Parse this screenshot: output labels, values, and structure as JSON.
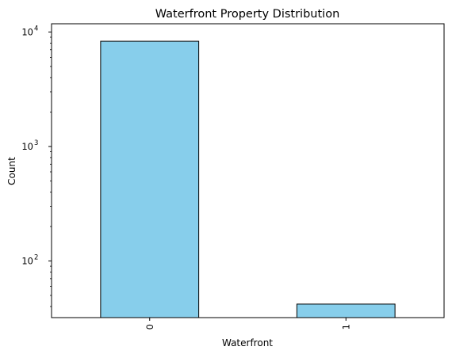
{
  "chart_data": {
    "type": "bar",
    "title": "Waterfront Property Distribution",
    "xlabel": "Waterfront",
    "ylabel": "Count",
    "categories": [
      "0",
      "1"
    ],
    "values": [
      8300,
      42
    ],
    "yscale": "log",
    "ylim": [
      32,
      11800
    ],
    "yticks": [
      {
        "value": 100,
        "base": "10",
        "exp": "2"
      },
      {
        "value": 1000,
        "base": "10",
        "exp": "3"
      },
      {
        "value": 10000,
        "base": "10",
        "exp": "4"
      }
    ],
    "grid": false,
    "legend": "none",
    "bar_color": "#87CEEB",
    "bar_edge_color": "#000000",
    "xtick_rotation": 90
  }
}
